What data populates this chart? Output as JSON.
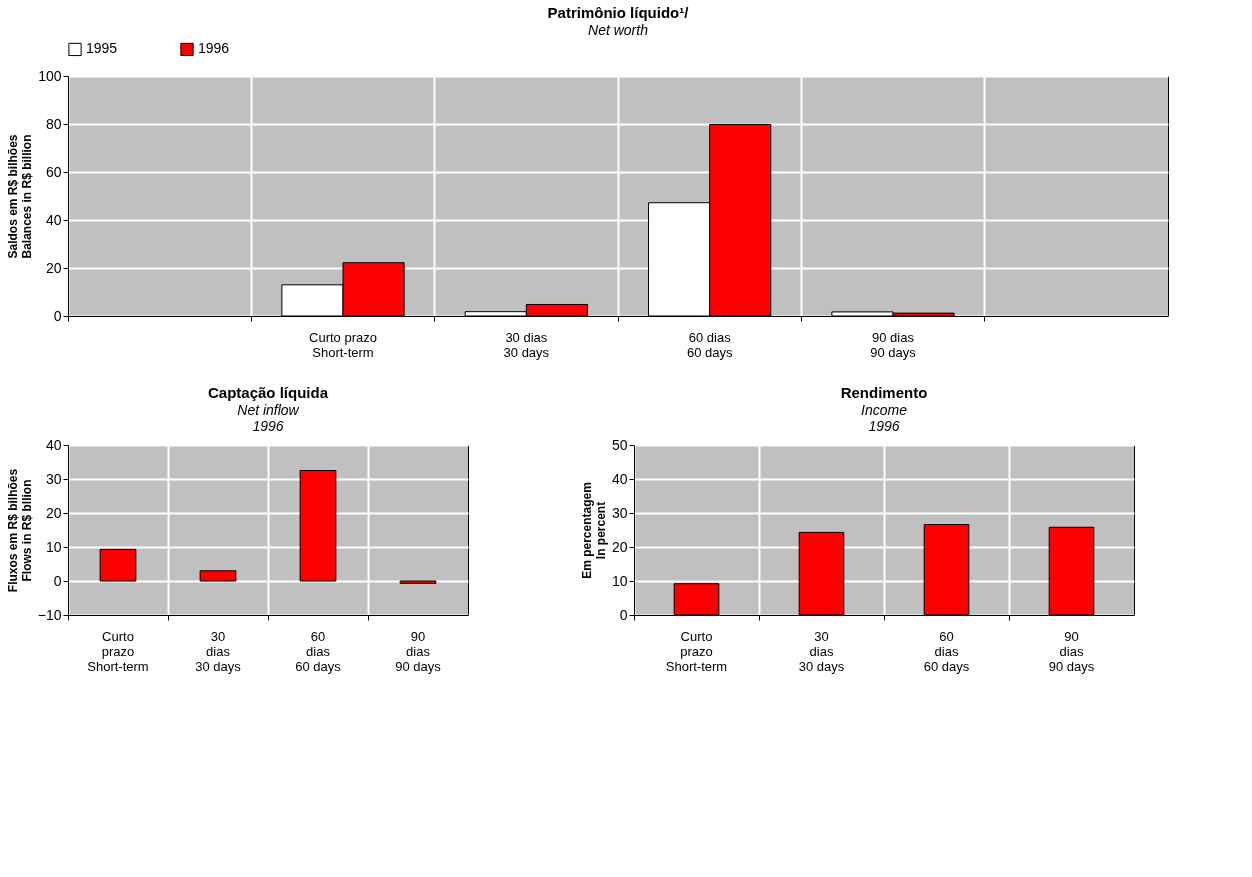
{
  "chart_data": [
    {
      "type": "bar",
      "title": "Patrimônio líquido¹/",
      "subtitle": "Net worth",
      "ylabel": [
        "Saldos em R$ bilhões",
        "Balances in R$ billion"
      ],
      "categories": [
        null,
        "Curto prazo\nShort-term",
        "30 dias\n30 days",
        "60 dias\n60 days",
        "90 dias\n90 days",
        null
      ],
      "series": [
        {
          "name": "1995",
          "color": "#ffffff",
          "values": [
            null,
            13,
            1.8,
            47.2,
            1.7,
            null
          ]
        },
        {
          "name": "1996",
          "color": "#ff0000",
          "values": [
            null,
            22.2,
            4.8,
            79.8,
            1.2,
            null
          ]
        }
      ],
      "ylim": [
        0,
        100
      ],
      "yticks": [
        0,
        20,
        40,
        60,
        80,
        100
      ],
      "grid": true,
      "legend": "top"
    },
    {
      "type": "bar",
      "title": "Captação líquida",
      "subtitle": [
        "Net inflow",
        "1996"
      ],
      "ylabel": [
        "Fluxos em R$ bilhões",
        "Flows in R$ bllion"
      ],
      "categories": [
        "Curto\nprazo\nShort-term",
        "30\ndias\n30 days",
        "60\ndias\n60 days",
        "90\ndias\n90 days"
      ],
      "series": [
        {
          "color": "#ff0000",
          "values": [
            9.3,
            3.0,
            32.5,
            -0.7
          ]
        }
      ],
      "ylim": [
        -10,
        40
      ],
      "yticks": [
        -10,
        0,
        10,
        20,
        30,
        40
      ],
      "grid": true
    },
    {
      "type": "bar",
      "title": "Rendimento",
      "subtitle": [
        "Income",
        "1996"
      ],
      "ylabel": [
        "Em percentagem",
        "In percent"
      ],
      "categories": [
        "Curto\nprazo\nShort-term",
        "30\ndias\n30 days",
        "60\ndias\n60 days",
        "90\ndias\n90 days"
      ],
      "series": [
        {
          "color": "#ff0000",
          "values": [
            9.2,
            24.3,
            26.6,
            25.8
          ]
        }
      ],
      "ylim": [
        0,
        50
      ],
      "yticks": [
        0,
        10,
        20,
        30,
        40,
        50
      ],
      "grid": true
    }
  ]
}
